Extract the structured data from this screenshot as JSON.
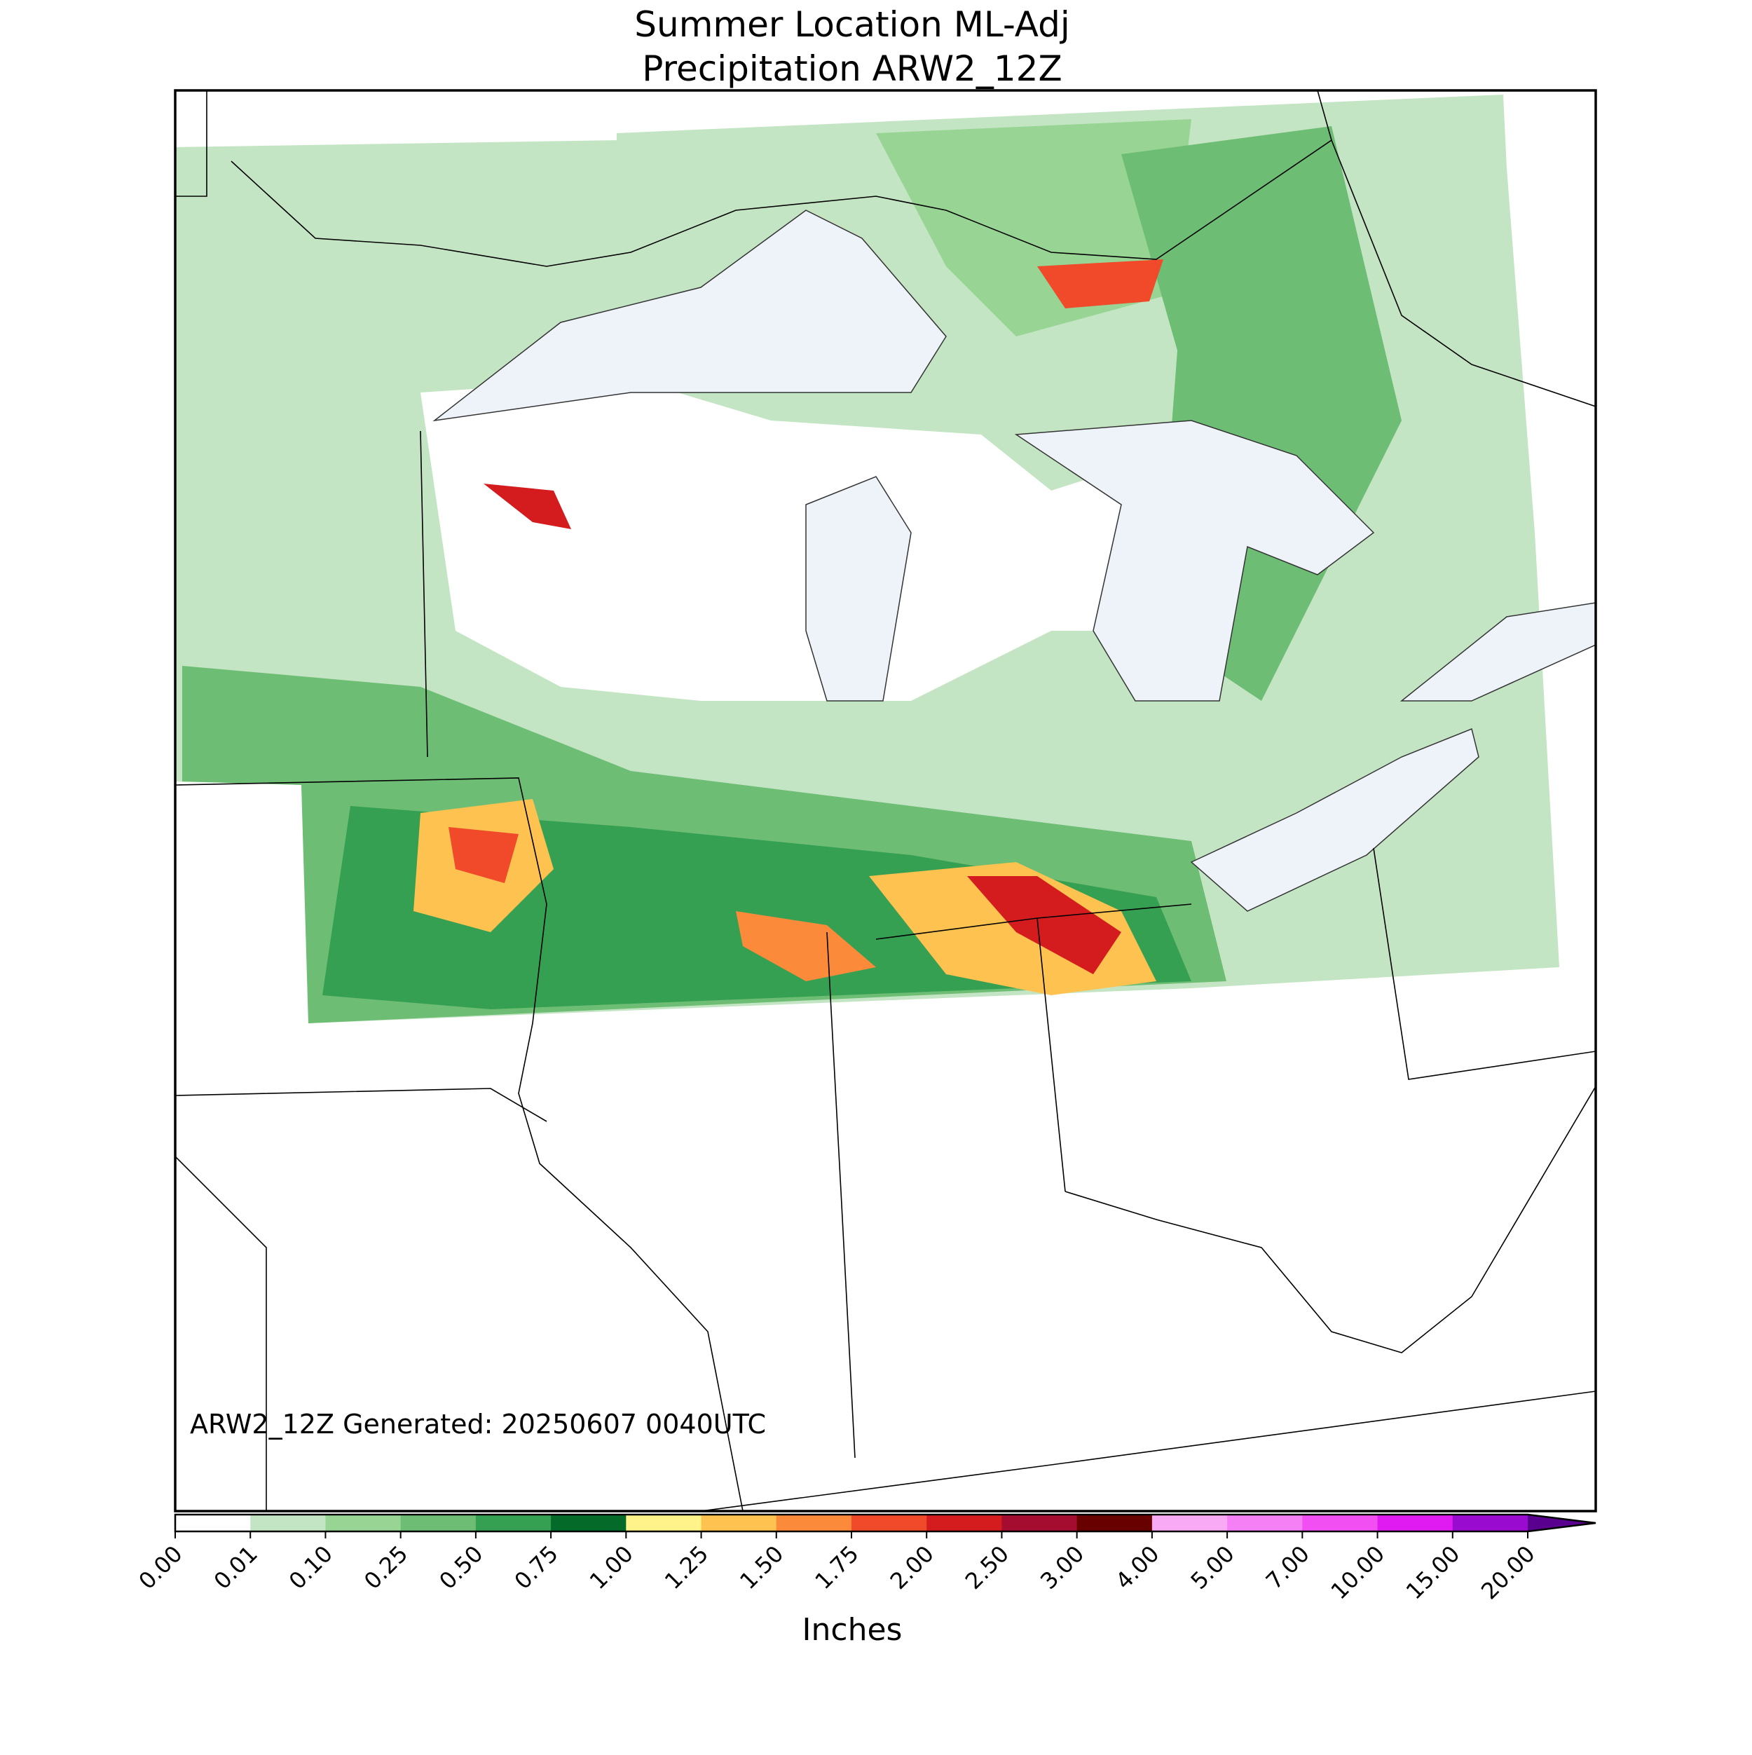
{
  "title": [
    "Summer Location ML-Adj",
    "Precipitation ARW2_12Z"
  ],
  "annotation": "ARW2_12Z Generated: 20250607 0040UTC",
  "colorbar": {
    "label": "Inches",
    "ticks": [
      {
        "value": 0,
        "label": "0.00"
      },
      {
        "value": 0.01,
        "label": "0.01"
      },
      {
        "value": 0.1,
        "label": "0.10"
      },
      {
        "value": 0.25,
        "label": "0.25"
      },
      {
        "value": 0.5,
        "label": "0.50"
      },
      {
        "value": 0.75,
        "label": "0.75"
      },
      {
        "value": 1,
        "label": "1.00"
      },
      {
        "value": 1.25,
        "label": "1.25"
      },
      {
        "value": 1.5,
        "label": "1.50"
      },
      {
        "value": 1.75,
        "label": "1.75"
      },
      {
        "value": 2,
        "label": "2.00"
      },
      {
        "value": 2.5,
        "label": "2.50"
      },
      {
        "value": 3,
        "label": "3.00"
      },
      {
        "value": 4,
        "label": "4.00"
      },
      {
        "value": 5,
        "label": "5.00"
      },
      {
        "value": 7,
        "label": "7.00"
      },
      {
        "value": 10,
        "label": "10.00"
      },
      {
        "value": 15,
        "label": "15.00"
      },
      {
        "value": 20,
        "label": "20.00"
      }
    ],
    "colors": [
      "#ffffff",
      "#c4e5c4",
      "#98d594",
      "#6dbd74",
      "#36a052",
      "#036a2a",
      "#fff38a",
      "#fdc24f",
      "#fb8a3b",
      "#f04a2a",
      "#d41c1e",
      "#a40d30",
      "#690000",
      "#f8aaf5",
      "#f57ff4",
      "#f24ff2",
      "#e01bf1",
      "#9a0bd0"
    ],
    "extend_color": "#5a008f"
  }
}
